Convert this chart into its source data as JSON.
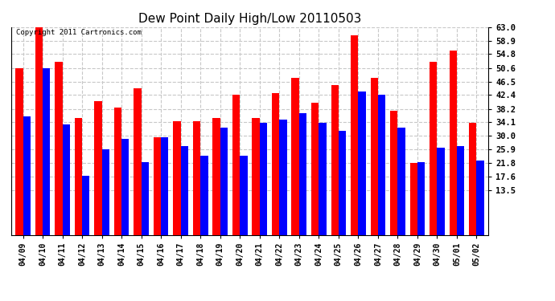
{
  "title": "Dew Point Daily High/Low 20110503",
  "copyright": "Copyright 2011 Cartronics.com",
  "dates": [
    "04/09",
    "04/10",
    "04/11",
    "04/12",
    "04/13",
    "04/14",
    "04/15",
    "04/16",
    "04/17",
    "04/18",
    "04/19",
    "04/20",
    "04/21",
    "04/22",
    "04/23",
    "04/24",
    "04/25",
    "04/26",
    "04/27",
    "04/28",
    "04/29",
    "04/30",
    "05/01",
    "05/02"
  ],
  "highs": [
    50.6,
    63.0,
    52.5,
    35.5,
    40.5,
    38.5,
    44.5,
    29.5,
    34.5,
    34.5,
    35.5,
    42.5,
    35.5,
    43.0,
    47.5,
    40.0,
    45.5,
    60.5,
    47.5,
    37.5,
    21.8,
    52.5,
    56.0,
    34.0
  ],
  "lows": [
    36.0,
    50.6,
    33.5,
    18.0,
    26.0,
    29.0,
    22.0,
    29.5,
    27.0,
    24.0,
    32.5,
    24.0,
    34.0,
    35.0,
    37.0,
    34.0,
    31.5,
    43.5,
    42.5,
    32.5,
    22.0,
    26.5,
    27.0,
    22.5
  ],
  "high_color": "#ff0000",
  "low_color": "#0000ff",
  "bg_color": "#ffffff",
  "grid_color": "#c8c8c8",
  "yticks": [
    13.5,
    17.6,
    21.8,
    25.9,
    30.0,
    34.1,
    38.2,
    42.4,
    46.5,
    50.6,
    54.8,
    58.9,
    63.0
  ],
  "ymin": 0,
  "ymax": 63.0,
  "bar_width": 0.38,
  "figwidth": 6.9,
  "figheight": 3.75,
  "dpi": 100
}
